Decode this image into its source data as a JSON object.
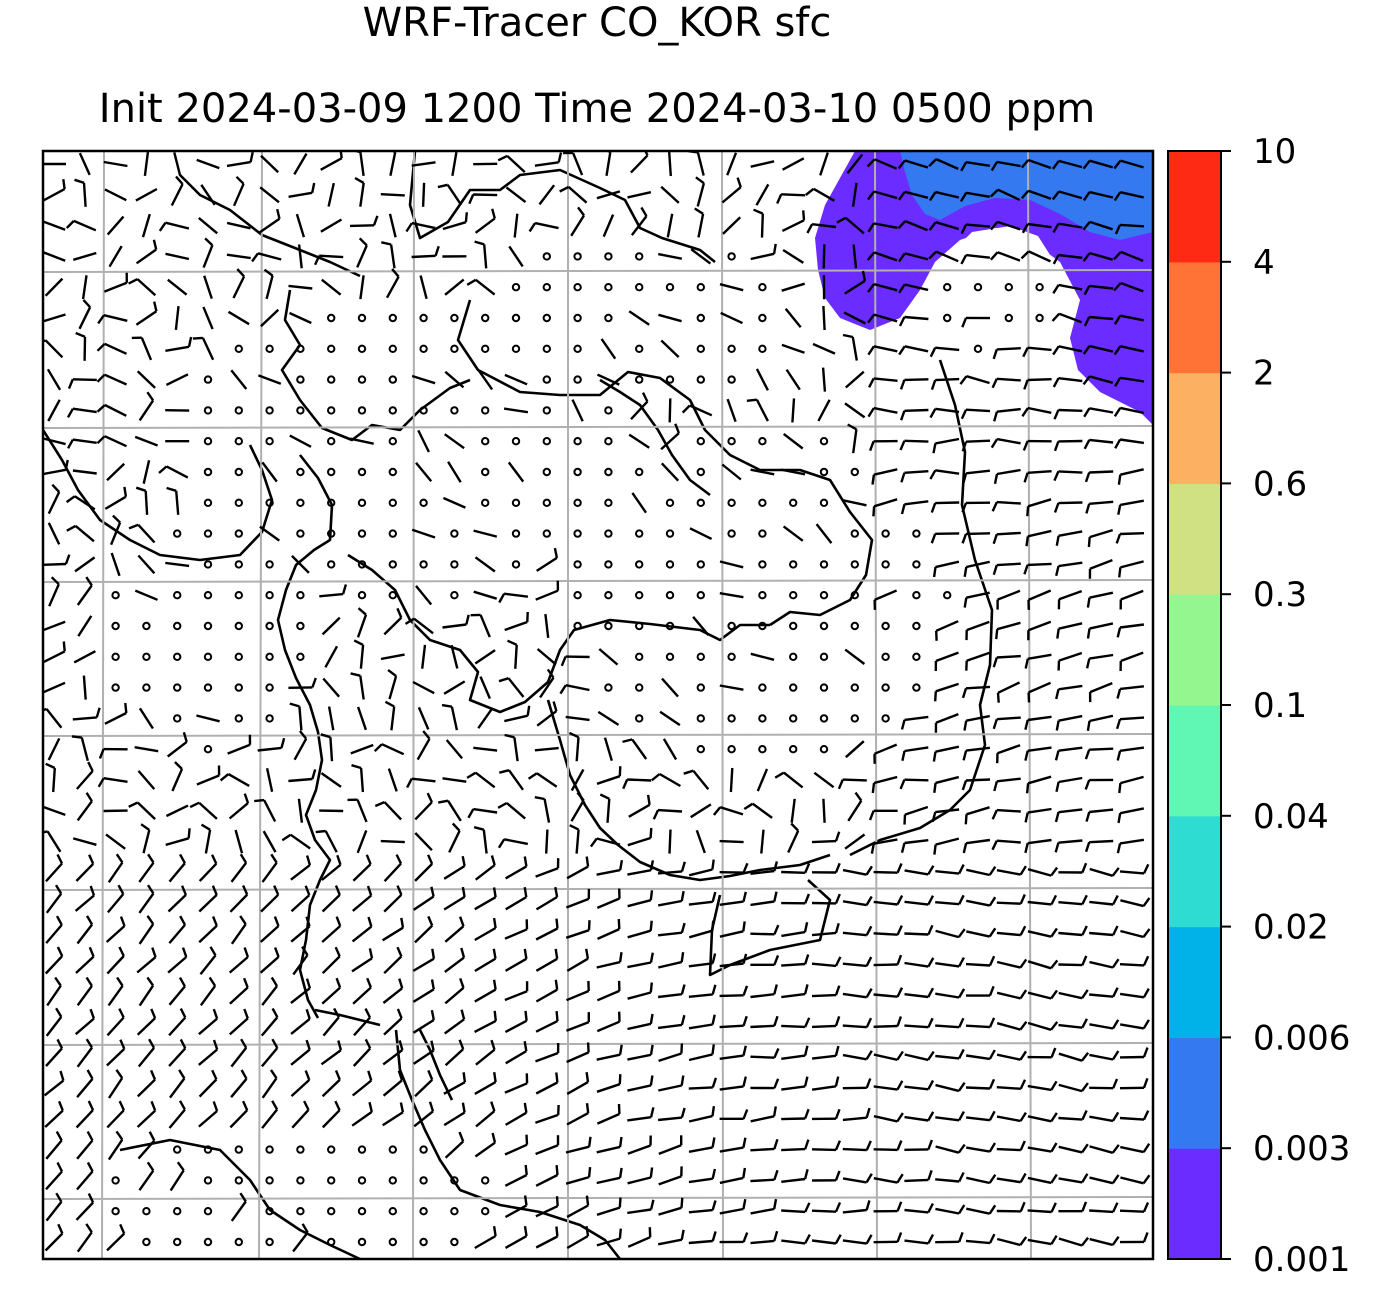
{
  "title": {
    "line1": "WRF-Tracer CO_KOR sfc",
    "line2": "Init 2024-03-09 1200 Time 2024-03-10 0500 ppm"
  },
  "colorbar": {
    "levels": [
      "0.001",
      "0.003",
      "0.006",
      "0.02",
      "0.04",
      "0.1",
      "0.3",
      "0.6",
      "2",
      "4",
      "10"
    ],
    "colors": [
      "#6a2cff",
      "#3579f0",
      "#00b2e8",
      "#2fdcd2",
      "#5ff7b3",
      "#93f68e",
      "#cfe183",
      "#fbb062",
      "#ff7336",
      "#ff2a14"
    ]
  },
  "map": {
    "tracer_colors": {
      "low": "#6a2cff",
      "mid": "#3579f0"
    },
    "grid": "on",
    "overlay": "wind barbs"
  }
}
